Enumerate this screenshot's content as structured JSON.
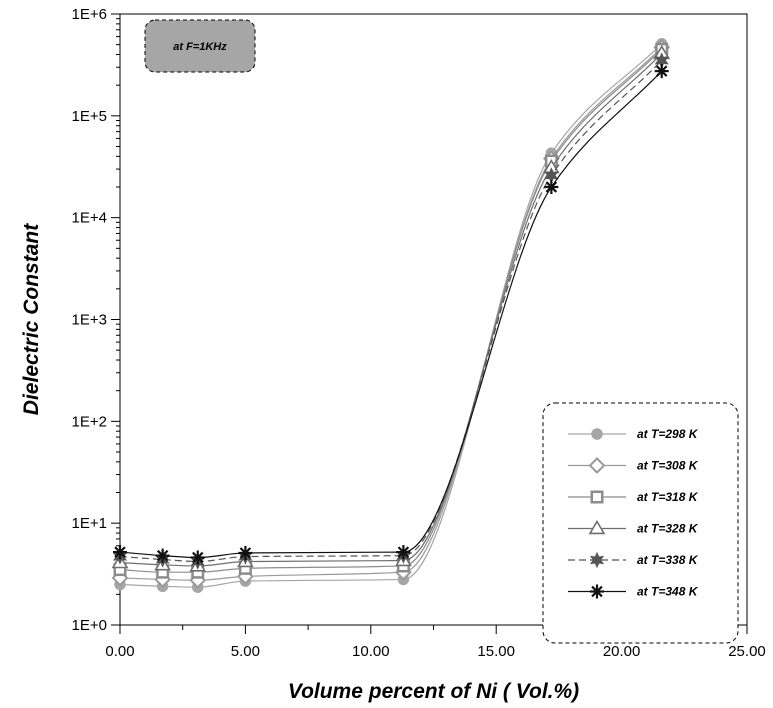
{
  "chart_data": {
    "type": "line",
    "title": "",
    "xlabel": "Volume percent of Ni ( Vol.%)",
    "ylabel": "Dielectric Constant",
    "annotation": "at  F=1KHz",
    "x": [
      0.0,
      1.7,
      3.1,
      5.0,
      11.3,
      17.2,
      21.6
    ],
    "xlim": [
      0,
      25
    ],
    "x_ticks": [
      0,
      5,
      10,
      15,
      20,
      25
    ],
    "x_tick_labels": [
      "0.00",
      "5.00",
      "10.00",
      "15.00",
      "20.00",
      "25.00"
    ],
    "ylim": [
      1,
      1000000
    ],
    "y_scale": "log",
    "y_ticks": [
      1,
      10,
      100,
      1000,
      10000,
      100000,
      1000000
    ],
    "y_tick_labels": [
      "1E+0",
      "1E+1",
      "1E+2",
      "1E+3",
      "1E+4",
      "1E+5",
      "1E+6"
    ],
    "grid": false,
    "legend_position": "bottom-right",
    "series": [
      {
        "name": "at T=298 K",
        "color": "#a6a6a6",
        "marker": "circle",
        "dash": false,
        "values": [
          2.5,
          2.4,
          2.35,
          2.7,
          2.8,
          43000,
          510000
        ]
      },
      {
        "name": "at T=308 K",
        "color": "#9a9a9a",
        "marker": "diamond",
        "dash": false,
        "values": [
          2.9,
          2.8,
          2.75,
          3.0,
          3.3,
          38000,
          470000
        ]
      },
      {
        "name": "at T=318 K",
        "color": "#8c8c8c",
        "marker": "square",
        "dash": false,
        "values": [
          3.5,
          3.3,
          3.3,
          3.6,
          3.8,
          36000,
          450000
        ]
      },
      {
        "name": "at T=328 K",
        "color": "#6e6e6e",
        "marker": "triangle",
        "dash": false,
        "values": [
          4.1,
          3.9,
          3.8,
          4.2,
          4.3,
          31000,
          410000
        ]
      },
      {
        "name": "at T=338 K",
        "color": "#555555",
        "marker": "star",
        "dash": true,
        "values": [
          4.7,
          4.4,
          4.2,
          4.7,
          4.8,
          26000,
          350000
        ]
      },
      {
        "name": "at T=348 K",
        "color": "#111111",
        "marker": "asterisk",
        "dash": false,
        "values": [
          5.2,
          4.8,
          4.6,
          5.1,
          5.2,
          20000,
          275000
        ]
      }
    ]
  }
}
